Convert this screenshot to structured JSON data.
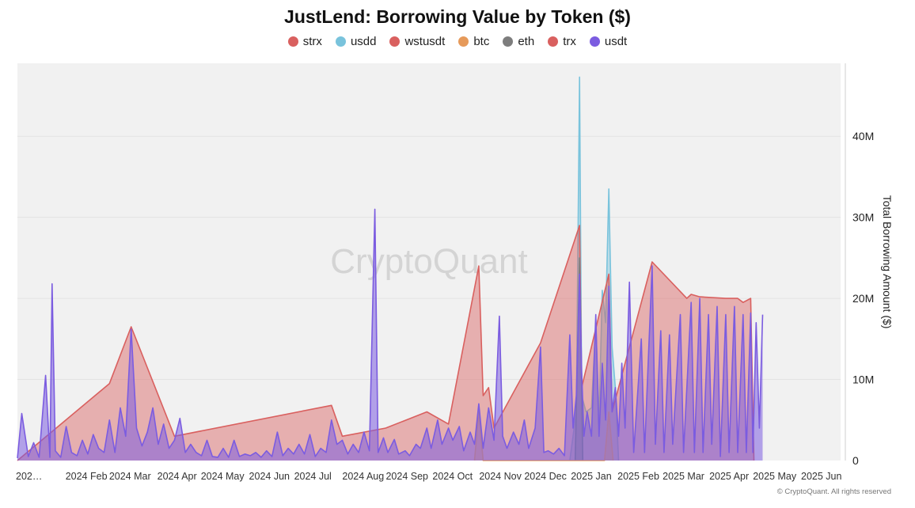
{
  "chart_data": {
    "type": "area",
    "title": "JustLend: Borrowing Value by Token ($)",
    "xlabel": "",
    "ylabel": "Total Borrowing Amount ($)",
    "ylim": [
      0,
      49000000
    ],
    "yticks": [
      {
        "value": 0,
        "label": "0"
      },
      {
        "value": 10000000,
        "label": "10M"
      },
      {
        "value": 20000000,
        "label": "20M"
      },
      {
        "value": 30000000,
        "label": "30M"
      },
      {
        "value": 40000000,
        "label": "40M"
      }
    ],
    "xticks": [
      "202…",
      "2024 Feb",
      "2024 Mar",
      "2024 Apr",
      "2024 May",
      "2024 Jun",
      "2024 Jul",
      "2024 Aug",
      "2024 Sep",
      "2024 Oct",
      "2024 Nov",
      "2024 Dec",
      "2025 Jan",
      "2025 Feb",
      "2025 Mar",
      "2025 Apr",
      "2025 May",
      "2025 Jun"
    ],
    "x_start_week": 0,
    "x_end_week": 76,
    "legend": [
      {
        "name": "strx",
        "color": "#d9605f"
      },
      {
        "name": "usdd",
        "color": "#79c3dc"
      },
      {
        "name": "wstusdt",
        "color": "#d9605f"
      },
      {
        "name": "btc",
        "color": "#e69a5a"
      },
      {
        "name": "eth",
        "color": "#7d7d7d"
      },
      {
        "name": "trx",
        "color": "#d9605f"
      },
      {
        "name": "usdt",
        "color": "#7b5ce0"
      }
    ],
    "series": [
      {
        "name": "usdt",
        "color": "#7b5ce0",
        "points": [
          [
            0,
            0.3
          ],
          [
            0.4,
            5.8
          ],
          [
            1,
            0.5
          ],
          [
            1.5,
            2.2
          ],
          [
            2,
            0.4
          ],
          [
            2.6,
            10.5
          ],
          [
            3,
            0.4
          ],
          [
            3.2,
            21.8
          ],
          [
            3.5,
            1.2
          ],
          [
            4,
            0.4
          ],
          [
            4.5,
            4.2
          ],
          [
            5,
            1
          ],
          [
            5.5,
            0.6
          ],
          [
            6,
            2.5
          ],
          [
            6.5,
            0.8
          ],
          [
            7,
            3.2
          ],
          [
            7.5,
            1.5
          ],
          [
            8,
            1
          ],
          [
            8.5,
            5
          ],
          [
            9,
            1
          ],
          [
            9.5,
            6.5
          ],
          [
            10,
            3
          ],
          [
            10.5,
            16.2
          ],
          [
            11,
            4
          ],
          [
            11.5,
            1.8
          ],
          [
            12,
            3.5
          ],
          [
            12.5,
            6.5
          ],
          [
            13,
            2
          ],
          [
            13.5,
            4.5
          ],
          [
            14,
            1.5
          ],
          [
            14.5,
            2.5
          ],
          [
            15,
            5.2
          ],
          [
            15.5,
            1
          ],
          [
            16,
            2
          ],
          [
            16.5,
            1
          ],
          [
            17,
            0.6
          ],
          [
            17.5,
            2.5
          ],
          [
            18,
            0.5
          ],
          [
            18.5,
            0.4
          ],
          [
            19,
            1.5
          ],
          [
            19.5,
            0.4
          ],
          [
            20,
            2.5
          ],
          [
            20.5,
            0.5
          ],
          [
            21,
            0.8
          ],
          [
            21.5,
            0.6
          ],
          [
            22,
            1
          ],
          [
            22.5,
            0.4
          ],
          [
            23,
            1.2
          ],
          [
            23.5,
            0.5
          ],
          [
            24,
            3.5
          ],
          [
            24.5,
            0.6
          ],
          [
            25,
            1.5
          ],
          [
            25.5,
            0.8
          ],
          [
            26,
            2
          ],
          [
            26.5,
            0.8
          ],
          [
            27,
            3.2
          ],
          [
            27.5,
            0.5
          ],
          [
            28,
            1.5
          ],
          [
            28.5,
            1
          ],
          [
            29,
            5
          ],
          [
            29.5,
            2
          ],
          [
            30,
            2.5
          ],
          [
            30.5,
            0.8
          ],
          [
            31,
            2
          ],
          [
            31.5,
            1
          ],
          [
            32,
            3.5
          ],
          [
            32.5,
            1.2
          ],
          [
            33,
            31
          ],
          [
            33.3,
            1
          ],
          [
            33.8,
            2.8
          ],
          [
            34.2,
            1
          ],
          [
            34.8,
            2.6
          ],
          [
            35.2,
            0.8
          ],
          [
            35.8,
            1.2
          ],
          [
            36.2,
            0.6
          ],
          [
            36.8,
            2
          ],
          [
            37.2,
            1.5
          ],
          [
            37.8,
            4
          ],
          [
            38.2,
            1.5
          ],
          [
            38.8,
            5
          ],
          [
            39.2,
            2
          ],
          [
            39.8,
            4
          ],
          [
            40.2,
            2.5
          ],
          [
            40.8,
            4.2
          ],
          [
            41.2,
            1.2
          ],
          [
            41.8,
            3.5
          ],
          [
            42.2,
            2
          ],
          [
            42.6,
            7
          ],
          [
            43,
            1.5
          ],
          [
            43.5,
            6.5
          ],
          [
            44,
            2.5
          ],
          [
            44.5,
            17.8
          ],
          [
            44.8,
            3
          ],
          [
            45.2,
            1.5
          ],
          [
            45.8,
            3.5
          ],
          [
            46.3,
            2
          ],
          [
            46.8,
            5
          ],
          [
            47.2,
            1.5
          ],
          [
            47.8,
            4
          ],
          [
            48.3,
            14
          ],
          [
            48.6,
            1
          ],
          [
            49,
            1.2
          ],
          [
            49.5,
            0.8
          ],
          [
            50,
            1.5
          ],
          [
            50.5,
            0.6
          ],
          [
            51,
            15.5
          ],
          [
            51.3,
            4
          ],
          [
            51.6,
            8
          ],
          [
            51.9,
            23
          ],
          [
            52.1,
            11
          ],
          [
            52.3,
            3
          ],
          [
            52.6,
            6
          ],
          [
            53,
            3
          ],
          [
            53.4,
            18
          ],
          [
            53.7,
            3
          ],
          [
            54,
            12
          ],
          [
            54.3,
            5
          ],
          [
            54.6,
            21.5
          ],
          [
            54.9,
            6
          ],
          [
            55.2,
            9
          ],
          [
            55.5,
            3
          ],
          [
            55.8,
            12
          ],
          [
            56.1,
            4
          ],
          [
            56.5,
            22
          ],
          [
            56.9,
            1
          ],
          [
            57.6,
            15
          ],
          [
            57.9,
            1
          ],
          [
            58.6,
            24
          ],
          [
            58.9,
            2
          ],
          [
            59.4,
            16
          ],
          [
            59.7,
            1
          ],
          [
            60.2,
            15.5
          ],
          [
            60.5,
            2
          ],
          [
            61.2,
            18
          ],
          [
            61.5,
            1
          ],
          [
            62.2,
            19.5
          ],
          [
            62.5,
            1
          ],
          [
            63,
            20
          ],
          [
            63.3,
            1
          ],
          [
            63.8,
            18
          ],
          [
            64.1,
            2
          ],
          [
            64.6,
            19
          ],
          [
            64.9,
            0.5
          ],
          [
            65.4,
            18
          ],
          [
            65.7,
            1
          ],
          [
            66.2,
            19
          ],
          [
            66.5,
            1
          ],
          [
            67,
            18
          ],
          [
            67.3,
            1
          ],
          [
            67.7,
            18.2
          ],
          [
            67.9,
            1
          ],
          [
            68.2,
            17
          ],
          [
            68.5,
            4
          ],
          [
            68.8,
            18
          ]
        ]
      },
      {
        "name": "usdd",
        "color": "#79c3dc",
        "points": [
          [
            51,
            0
          ],
          [
            51.6,
            6
          ],
          [
            51.9,
            47.3
          ],
          [
            52.1,
            8
          ],
          [
            52.5,
            6
          ],
          [
            53,
            6.5
          ],
          [
            53.4,
            17
          ],
          [
            53.7,
            5
          ],
          [
            54,
            21
          ],
          [
            54.3,
            17
          ],
          [
            54.6,
            33.5
          ],
          [
            54.9,
            14
          ],
          [
            55.2,
            9
          ],
          [
            55.5,
            0
          ]
        ]
      },
      {
        "name": "trx",
        "color": "#d9605f",
        "points": [
          [
            0,
            0
          ],
          [
            8.5,
            9.5
          ],
          [
            10.5,
            16.5
          ],
          [
            14.5,
            3
          ],
          [
            29,
            6.8
          ],
          [
            30,
            3
          ],
          [
            34,
            4
          ],
          [
            37.8,
            6
          ],
          [
            39.8,
            4.5
          ],
          [
            42.6,
            24
          ],
          [
            43,
            8
          ],
          [
            43.5,
            9
          ],
          [
            44,
            4
          ],
          [
            48.3,
            14.5
          ],
          [
            51.9,
            29
          ],
          [
            52.1,
            9
          ],
          [
            54.6,
            23
          ],
          [
            54.9,
            6
          ],
          [
            58.6,
            24.5
          ],
          [
            61.8,
            20
          ],
          [
            62.2,
            20.5
          ],
          [
            63,
            20.2
          ],
          [
            65.4,
            20
          ],
          [
            66.5,
            20
          ],
          [
            67,
            19.5
          ],
          [
            67.7,
            20
          ],
          [
            68,
            0
          ]
        ]
      },
      {
        "name": "eth",
        "color": "#7d7d7d",
        "points": [
          [
            51.5,
            0
          ],
          [
            51.9,
            25
          ],
          [
            52.2,
            0
          ]
        ]
      },
      {
        "name": "btc",
        "color": "#e69a5a",
        "points": [
          [
            42.2,
            0
          ],
          [
            42.6,
            6
          ],
          [
            43,
            0
          ],
          [
            54.2,
            0
          ],
          [
            54.6,
            6
          ],
          [
            55,
            0
          ]
        ]
      }
    ]
  },
  "watermark": "CryptoQuant",
  "copyright": "© CryptoQuant. All rights reserved"
}
